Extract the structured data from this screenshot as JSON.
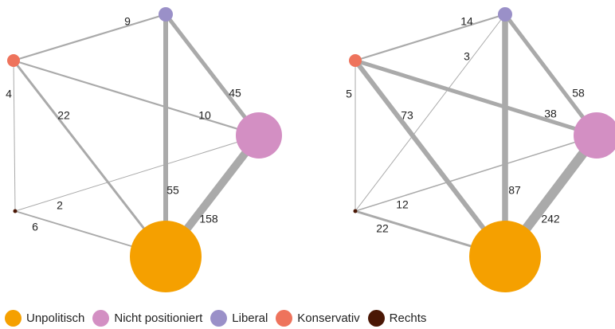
{
  "colors": {
    "edge": "#aaaaaa"
  },
  "legend": [
    {
      "id": "unpolitisch",
      "label": "Unpolitisch",
      "color": "#f5a000"
    },
    {
      "id": "nicht",
      "label": "Nicht positioniert",
      "color": "#d38fc3"
    },
    {
      "id": "liberal",
      "label": "Liberal",
      "color": "#9a90c8"
    },
    {
      "id": "konservativ",
      "label": "Konservativ",
      "color": "#ee735c"
    },
    {
      "id": "rechts",
      "label": "Rechts",
      "color": "#4a1705"
    }
  ],
  "networks": [
    {
      "id": "left",
      "edges": [
        {
          "from": "konservativ",
          "to": "liberal",
          "label": "9"
        },
        {
          "from": "liberal",
          "to": "nicht",
          "label": "45"
        },
        {
          "from": "liberal",
          "to": "unpolitisch",
          "label": "55"
        },
        {
          "from": "konservativ",
          "to": "nicht",
          "label": "10"
        },
        {
          "from": "konservativ",
          "to": "unpolitisch",
          "label": "22"
        },
        {
          "from": "konservativ",
          "to": "rechts",
          "label": "4"
        },
        {
          "from": "rechts",
          "to": "nicht",
          "label": "2"
        },
        {
          "from": "rechts",
          "to": "unpolitisch",
          "label": "6"
        },
        {
          "from": "nicht",
          "to": "unpolitisch",
          "label": "158"
        }
      ]
    },
    {
      "id": "right",
      "edges": [
        {
          "from": "konservativ",
          "to": "liberal",
          "label": "14"
        },
        {
          "from": "rechts",
          "to": "liberal",
          "label": "3"
        },
        {
          "from": "liberal",
          "to": "nicht",
          "label": "58"
        },
        {
          "from": "liberal",
          "to": "unpolitisch",
          "label": "87"
        },
        {
          "from": "konservativ",
          "to": "nicht",
          "label": "38"
        },
        {
          "from": "konservativ",
          "to": "unpolitisch",
          "label": "73"
        },
        {
          "from": "konservativ",
          "to": "rechts",
          "label": "5"
        },
        {
          "from": "rechts",
          "to": "nicht",
          "label": "12"
        },
        {
          "from": "rechts",
          "to": "unpolitisch",
          "label": "22"
        },
        {
          "from": "nicht",
          "to": "unpolitisch",
          "label": "242"
        }
      ]
    }
  ]
}
